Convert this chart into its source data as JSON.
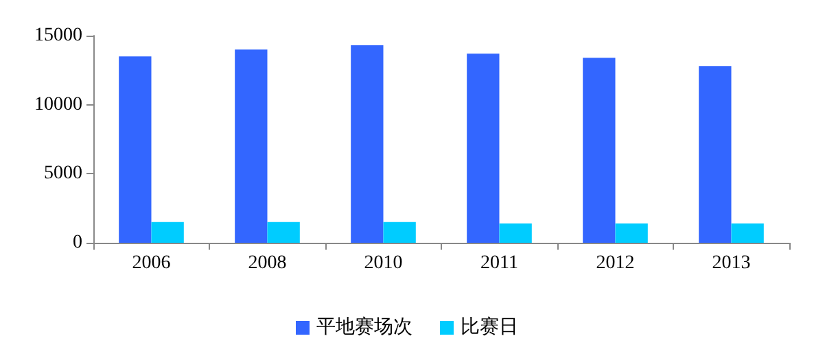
{
  "chart_data": {
    "type": "bar",
    "categories": [
      "2006",
      "2008",
      "2010",
      "2011",
      "2012",
      "2013"
    ],
    "series": [
      {
        "name": "平地赛场次",
        "color": "#3366ff",
        "values": [
          13500,
          14000,
          14300,
          13700,
          13400,
          12800
        ]
      },
      {
        "name": "比赛日",
        "color": "#00ccff",
        "values": [
          1500,
          1500,
          1500,
          1400,
          1400,
          1400
        ]
      }
    ],
    "ylim": [
      0,
      15000
    ],
    "yticks": [
      0,
      5000,
      10000,
      15000
    ],
    "grid": false,
    "legend": "bottom"
  }
}
